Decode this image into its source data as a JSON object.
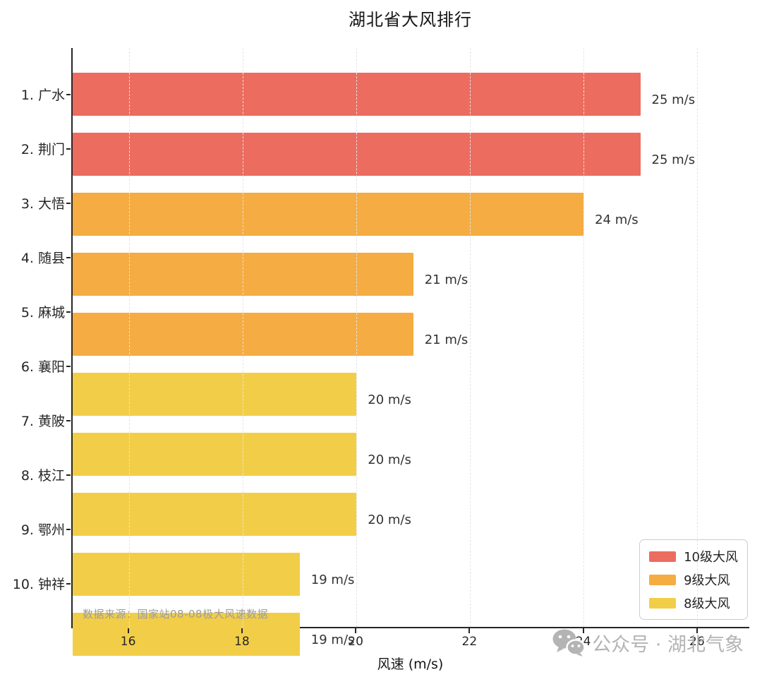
{
  "title": "湖北省大风排行",
  "chart_data": {
    "type": "bar",
    "orientation": "horizontal",
    "categories": [
      "1. 广水",
      "2. 荆门",
      "3. 大悟",
      "4. 随县",
      "5. 麻城",
      "6. 襄阳",
      "7. 黄陂",
      "8. 枝江",
      "9. 鄂州",
      "10. 钟祥"
    ],
    "values": [
      25,
      25,
      24,
      21,
      21,
      20,
      20,
      20,
      19,
      19
    ],
    "value_labels": [
      "25 m/s",
      "25 m/s",
      "24 m/s",
      "21 m/s",
      "21 m/s",
      "20 m/s",
      "20 m/s",
      "20 m/s",
      "19 m/s",
      "19 m/s"
    ],
    "bar_levels": [
      "10级大风",
      "10级大风",
      "9级大风",
      "9级大风",
      "9级大风",
      "8级大风",
      "8级大风",
      "8级大风",
      "8级大风",
      "8级大风"
    ],
    "xlabel": "风速 (m/s)",
    "xticks": [
      16,
      18,
      20,
      22,
      24,
      26
    ],
    "xlim": [
      15,
      26.92
    ],
    "grid": "vertical-dashed",
    "legend": {
      "position": "lower right",
      "entries": [
        {
          "label": "10级大风",
          "color": "#EC6C5F"
        },
        {
          "label": "9级大风",
          "color": "#F5AC42"
        },
        {
          "label": "8级大风",
          "color": "#F2CE48"
        }
      ]
    },
    "source_note": "数据来源：国家站08-08极大风速数据"
  },
  "colors": {
    "spine": "#262626",
    "gridline": "#e4e4e4",
    "value_label_text": "#333333",
    "source_note_text": "#9c9c9c",
    "watermark_gray": "#b4b4b4"
  },
  "watermark": {
    "icon": "wechat-icon",
    "text": "公众号 · 湖北气象"
  }
}
